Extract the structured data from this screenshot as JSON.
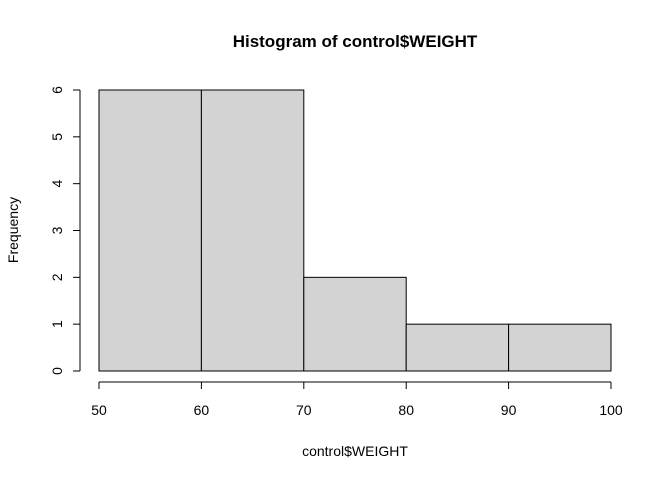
{
  "chart_data": {
    "type": "bar",
    "title": "Histogram of control$WEIGHT",
    "xlabel": "control$WEIGHT",
    "ylabel": "Frequency",
    "bins": [
      {
        "start": 50,
        "end": 60,
        "count": 6
      },
      {
        "start": 60,
        "end": 70,
        "count": 6
      },
      {
        "start": 70,
        "end": 80,
        "count": 2
      },
      {
        "start": 80,
        "end": 90,
        "count": 1
      },
      {
        "start": 90,
        "end": 100,
        "count": 1
      }
    ],
    "xlim": [
      50,
      100
    ],
    "ylim": [
      0,
      6
    ],
    "x_ticks": [
      50,
      60,
      70,
      80,
      90,
      100
    ],
    "y_ticks": [
      0,
      1,
      2,
      3,
      4,
      5,
      6
    ],
    "grid": false,
    "bar_fill": "#d3d3d3",
    "bar_stroke": "#000000"
  }
}
